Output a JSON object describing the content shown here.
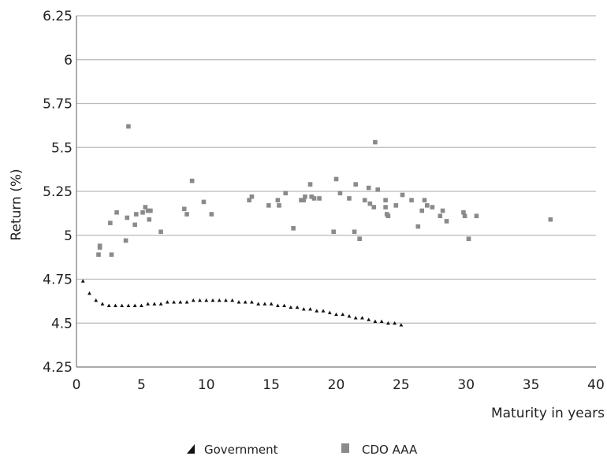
{
  "chart_data": {
    "type": "scatter",
    "xlabel": "Maturity in years",
    "ylabel": "Return (%)",
    "xlim": [
      0,
      40
    ],
    "ylim": [
      4.25,
      6.25
    ],
    "x_ticks": [
      0,
      5,
      10,
      15,
      20,
      25,
      30,
      35,
      40
    ],
    "y_ticks": [
      4.25,
      4.5,
      4.75,
      5,
      5.25,
      5.5,
      5.75,
      6,
      6.25
    ],
    "y_tick_labels": [
      "4.25",
      "4.5",
      "4.75",
      "5",
      "5.25",
      "5.5",
      "5.75",
      "6",
      "6.25"
    ],
    "grid": "horizontal",
    "legend_position": "bottom",
    "series": [
      {
        "name": "Government",
        "color": "#111111",
        "marker": "triangle",
        "points": [
          [
            0.5,
            4.74
          ],
          [
            1.0,
            4.67
          ],
          [
            1.5,
            4.63
          ],
          [
            2.0,
            4.61
          ],
          [
            2.5,
            4.6
          ],
          [
            3.0,
            4.6
          ],
          [
            3.5,
            4.6
          ],
          [
            4.0,
            4.6
          ],
          [
            4.5,
            4.6
          ],
          [
            5.0,
            4.6
          ],
          [
            5.5,
            4.61
          ],
          [
            6.0,
            4.61
          ],
          [
            6.5,
            4.61
          ],
          [
            7.0,
            4.62
          ],
          [
            7.5,
            4.62
          ],
          [
            8.0,
            4.62
          ],
          [
            8.5,
            4.62
          ],
          [
            9.0,
            4.63
          ],
          [
            9.5,
            4.63
          ],
          [
            10.0,
            4.63
          ],
          [
            10.5,
            4.63
          ],
          [
            11.0,
            4.63
          ],
          [
            11.5,
            4.63
          ],
          [
            12.0,
            4.63
          ],
          [
            12.5,
            4.62
          ],
          [
            13.0,
            4.62
          ],
          [
            13.5,
            4.62
          ],
          [
            14.0,
            4.61
          ],
          [
            14.5,
            4.61
          ],
          [
            15.0,
            4.61
          ],
          [
            15.5,
            4.6
          ],
          [
            16.0,
            4.6
          ],
          [
            16.5,
            4.59
          ],
          [
            17.0,
            4.59
          ],
          [
            17.5,
            4.58
          ],
          [
            18.0,
            4.58
          ],
          [
            18.5,
            4.57
          ],
          [
            19.0,
            4.57
          ],
          [
            19.5,
            4.56
          ],
          [
            20.0,
            4.55
          ],
          [
            20.5,
            4.55
          ],
          [
            21.0,
            4.54
          ],
          [
            21.5,
            4.53
          ],
          [
            22.0,
            4.53
          ],
          [
            22.5,
            4.52
          ],
          [
            23.0,
            4.51
          ],
          [
            23.5,
            4.51
          ],
          [
            24.0,
            4.5
          ],
          [
            24.5,
            4.5
          ],
          [
            25.0,
            4.49
          ]
        ]
      },
      {
        "name": "CDO AAA",
        "color": "#8a8a8a",
        "marker": "square",
        "points": [
          [
            1.7,
            4.89
          ],
          [
            1.8,
            4.93
          ],
          [
            1.8,
            4.94
          ],
          [
            2.6,
            5.07
          ],
          [
            2.7,
            4.89
          ],
          [
            3.1,
            5.13
          ],
          [
            3.8,
            4.97
          ],
          [
            3.9,
            5.1
          ],
          [
            4.0,
            5.62
          ],
          [
            4.5,
            5.06
          ],
          [
            4.6,
            5.12
          ],
          [
            5.1,
            5.13
          ],
          [
            5.3,
            5.16
          ],
          [
            5.5,
            5.14
          ],
          [
            5.6,
            5.09
          ],
          [
            5.7,
            5.14
          ],
          [
            6.5,
            5.02
          ],
          [
            8.3,
            5.15
          ],
          [
            8.5,
            5.12
          ],
          [
            8.9,
            5.31
          ],
          [
            9.8,
            5.19
          ],
          [
            10.4,
            5.12
          ],
          [
            13.3,
            5.2
          ],
          [
            13.5,
            5.22
          ],
          [
            14.8,
            5.17
          ],
          [
            15.5,
            5.2
          ],
          [
            15.6,
            5.17
          ],
          [
            16.1,
            5.24
          ],
          [
            16.7,
            5.04
          ],
          [
            17.3,
            5.2
          ],
          [
            17.5,
            5.2
          ],
          [
            17.6,
            5.22
          ],
          [
            18.0,
            5.29
          ],
          [
            18.1,
            5.22
          ],
          [
            18.3,
            5.21
          ],
          [
            18.7,
            5.21
          ],
          [
            19.8,
            5.02
          ],
          [
            20.0,
            5.32
          ],
          [
            20.3,
            5.24
          ],
          [
            21.0,
            5.21
          ],
          [
            21.4,
            5.02
          ],
          [
            21.5,
            5.29
          ],
          [
            21.8,
            4.98
          ],
          [
            22.2,
            5.2
          ],
          [
            22.5,
            5.27
          ],
          [
            22.6,
            5.18
          ],
          [
            22.9,
            5.16
          ],
          [
            23.0,
            5.53
          ],
          [
            23.2,
            5.26
          ],
          [
            23.8,
            5.2
          ],
          [
            23.8,
            5.16
          ],
          [
            23.9,
            5.12
          ],
          [
            24.0,
            5.11
          ],
          [
            24.6,
            5.17
          ],
          [
            25.1,
            5.23
          ],
          [
            25.8,
            5.2
          ],
          [
            26.3,
            5.05
          ],
          [
            26.6,
            5.14
          ],
          [
            26.8,
            5.2
          ],
          [
            27.0,
            5.17
          ],
          [
            27.4,
            5.16
          ],
          [
            28.0,
            5.11
          ],
          [
            28.2,
            5.14
          ],
          [
            28.5,
            5.08
          ],
          [
            29.8,
            5.13
          ],
          [
            29.9,
            5.11
          ],
          [
            30.2,
            4.98
          ],
          [
            30.8,
            5.11
          ],
          [
            36.5,
            5.09
          ]
        ]
      }
    ]
  }
}
